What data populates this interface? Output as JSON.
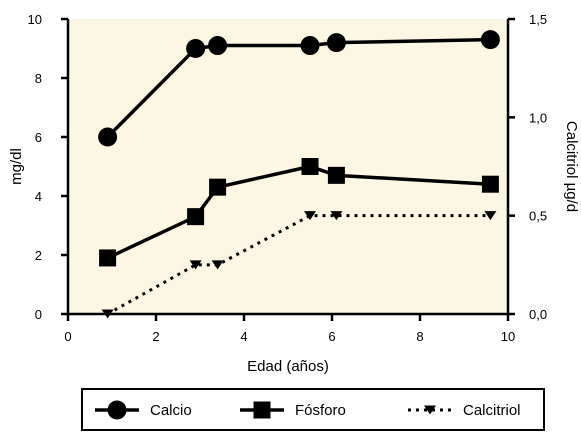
{
  "chart_data": {
    "type": "line",
    "xlabel": "Edad (años)",
    "ylabel_left": "mg/dl",
    "ylabel_right": "Calcitriol µg/d",
    "xlim": [
      0,
      10
    ],
    "ylim_left": [
      0,
      10
    ],
    "ylim_right": [
      0,
      1.5
    ],
    "x_ticks": [
      0,
      2,
      4,
      6,
      8,
      10
    ],
    "x_tick_labels": [
      "0",
      "2",
      "4",
      "6",
      "8",
      "10"
    ],
    "y_left_ticks": [
      0,
      2,
      4,
      6,
      8,
      10
    ],
    "y_left_tick_labels": [
      "0",
      "2",
      "4",
      "6",
      "8",
      "10"
    ],
    "y_right_ticks": [
      0,
      0.5,
      1.0,
      1.5
    ],
    "y_right_tick_labels": [
      "0,0",
      "0,5",
      "1,0",
      "1,5"
    ],
    "background_color": "#fbf7e3",
    "legend_position": "bottom",
    "series": [
      {
        "name": "Calcio",
        "axis": "left",
        "marker": "circle",
        "line": "solid",
        "x": [
          0.9,
          2.9,
          3.4,
          5.5,
          6.1,
          9.6
        ],
        "y": [
          6.0,
          9.0,
          9.1,
          9.1,
          9.2,
          9.3
        ]
      },
      {
        "name": "Fósforo",
        "axis": "left",
        "marker": "square",
        "line": "solid",
        "x": [
          0.9,
          2.9,
          3.4,
          5.5,
          6.1,
          9.6
        ],
        "y": [
          1.9,
          3.3,
          4.3,
          5.0,
          4.7,
          4.4
        ]
      },
      {
        "name": "Calcitriol",
        "axis": "right",
        "marker": "triangle-down",
        "line": "dotted",
        "x": [
          0.9,
          2.9,
          3.4,
          5.5,
          6.1,
          9.6
        ],
        "y": [
          0.0,
          0.25,
          0.25,
          0.5,
          0.5,
          0.5
        ]
      }
    ]
  }
}
